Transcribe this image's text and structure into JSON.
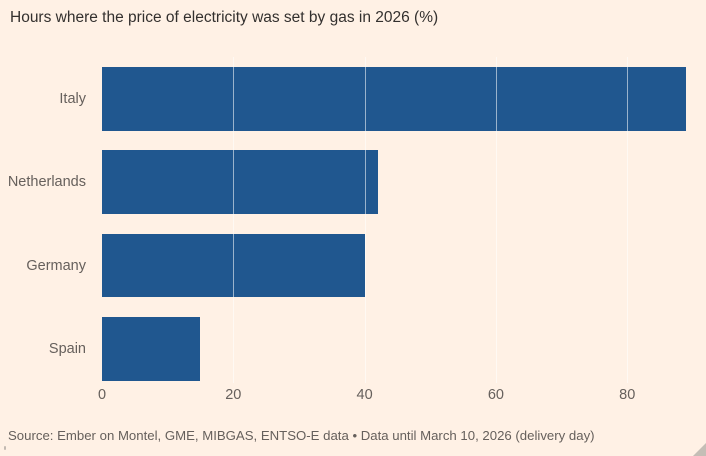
{
  "title": "Hours where the price of electricity was set by gas in 2026 (%)",
  "source": "Source: Ember on Montel, GME, MIBGAS, ENTSO-E data • Data until March 10, 2026 (delivery day)",
  "colors": {
    "background": "#FFF1E5",
    "bar": "#20578F",
    "title_text": "#33302E",
    "muted_text": "#66605C",
    "gridline": "rgba(255,255,255,0.55)",
    "resize_grip": "#c4beb6"
  },
  "icons": {
    "resize_grip": "resize-grip-icon"
  },
  "chart_data": {
    "type": "bar",
    "orientation": "horizontal",
    "title": "Hours where the price of electricity was set by gas in 2026 (%)",
    "categories": [
      "Italy",
      "Netherlands",
      "Germany",
      "Spain"
    ],
    "values": [
      89,
      42,
      40,
      15
    ],
    "unit": "%",
    "xlim": [
      0,
      92
    ],
    "xticks": [
      0,
      20,
      40,
      60,
      80
    ],
    "xlabel": "",
    "ylabel": "",
    "grid": "vertical-gridlines-on",
    "legend": "none",
    "source": "Source: Ember on Montel, GME, MIBGAS, ENTSO-E data • Data until March 10, 2026 (delivery day)"
  }
}
